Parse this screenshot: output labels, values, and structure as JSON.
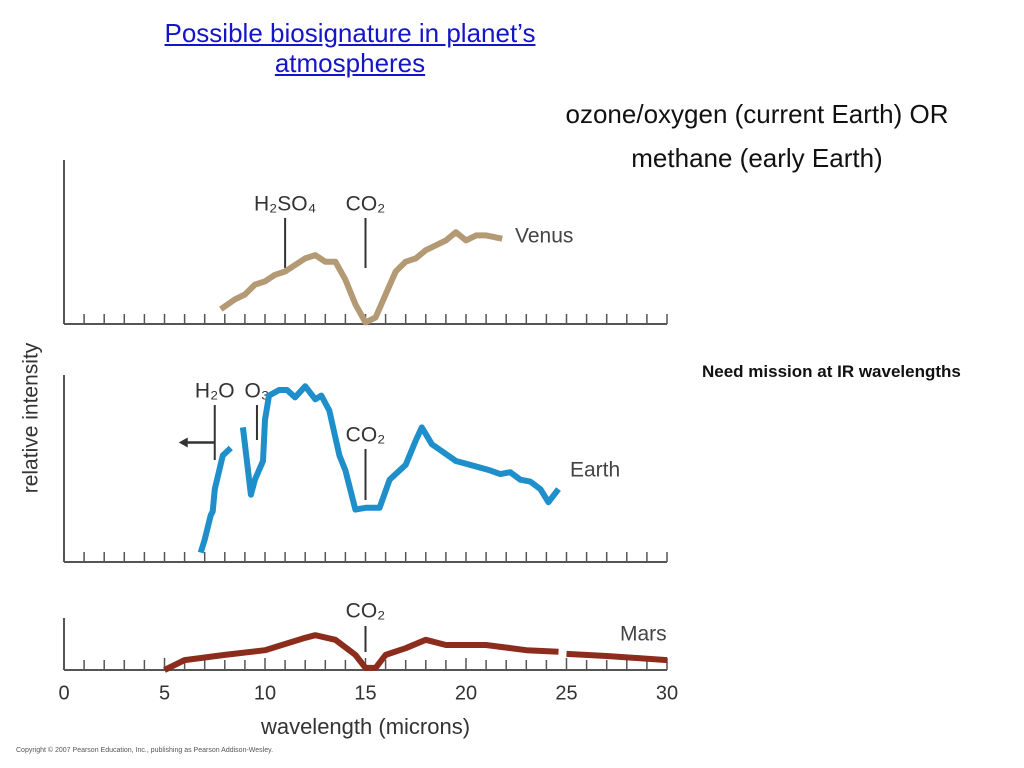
{
  "slide": {
    "title": "Possible biosignature in planet’s atmospheres",
    "subtitle_lines": [
      "ozone/oxygen (current Earth) OR",
      "methane (early Earth)"
    ],
    "note": "Need mission at IR wavelengths",
    "copyright": "Copyright © 2007 Pearson Education, Inc., publishing as Pearson Addison-Wesley."
  },
  "chart_data": [
    {
      "type": "line",
      "xlim": [
        0,
        30
      ],
      "ylim": [
        0,
        100
      ],
      "series": [
        {
          "name": "Venus",
          "color": "#b39a74",
          "x": [
            7.8,
            8.5,
            9,
            9.5,
            10,
            10.5,
            11,
            11.5,
            12,
            12.5,
            13,
            13.5,
            14,
            14.5,
            15,
            15.5,
            16,
            16.5,
            17,
            17.5,
            18,
            18.5,
            19,
            19.5,
            20,
            20.5,
            21,
            21.8
          ],
          "values": [
            9,
            15,
            18,
            24,
            26,
            30,
            32,
            36,
            40,
            42,
            38,
            38,
            27,
            12,
            1,
            4,
            18,
            32,
            38,
            40,
            45,
            48,
            51,
            56,
            51,
            54,
            54,
            52
          ]
        }
      ],
      "annotations": [
        {
          "label": "H₂SO₄",
          "x": 11
        },
        {
          "label": "CO₂",
          "x": 15
        }
      ]
    },
    {
      "type": "line",
      "xlim": [
        0,
        30
      ],
      "ylim": [
        0,
        100
      ],
      "ylabel": "relative intensity",
      "series": [
        {
          "name": "Earth",
          "color": "#1e8fcb",
          "x": [
            6.8,
            7.0,
            7.3,
            7.4,
            7.5,
            7.9,
            8.3,
            8.6,
            8.9,
            9.3,
            9.5,
            9.9,
            10.0,
            10.2,
            10.7,
            11.1,
            11.5,
            12.0,
            12.5,
            12.8,
            13.2,
            13.7,
            14.0,
            14.5,
            15.0,
            15.7,
            16.2,
            17.0,
            17.5,
            17.8,
            18.3,
            18.7,
            19.5,
            20.2,
            21.2,
            21.7,
            22.2,
            22.7,
            23.2,
            23.7,
            24.1,
            24.6
          ],
          "values": [
            5,
            12,
            25,
            27,
            39,
            57,
            61,
            null,
            72,
            36,
            44,
            54,
            76,
            89,
            92,
            92,
            88,
            94,
            87,
            89,
            81,
            57,
            49,
            28,
            29,
            29,
            44,
            52,
            65,
            72,
            63,
            60,
            54,
            52,
            49,
            47,
            48,
            44,
            43,
            39,
            32,
            39
          ]
        }
      ],
      "annotations": [
        {
          "label": "H₂O",
          "x": 7.5
        },
        {
          "label": "O₃",
          "x": 9.6
        },
        {
          "label": "CO₂",
          "x": 15
        }
      ]
    },
    {
      "type": "line",
      "xlim": [
        0,
        30
      ],
      "ylim": [
        0,
        100
      ],
      "xlabel": "wavelength (microns)",
      "xticks": [
        0,
        5,
        10,
        15,
        20,
        25,
        30
      ],
      "series": [
        {
          "name": "Mars",
          "color": "#8c2c1c",
          "x": [
            5,
            6,
            8,
            10,
            12,
            12.5,
            13.5,
            14.5,
            15,
            15.5,
            16,
            17,
            18,
            19,
            21,
            23,
            24.6,
            24.8,
            25,
            27,
            30
          ],
          "values": [
            0,
            19,
            29,
            38,
            62,
            67,
            58,
            29,
            4,
            4,
            29,
            42,
            58,
            48,
            48,
            38,
            35,
            null,
            31,
            27,
            19
          ]
        }
      ],
      "annotations": [
        {
          "label": "CO₂",
          "x": 15
        }
      ]
    }
  ]
}
